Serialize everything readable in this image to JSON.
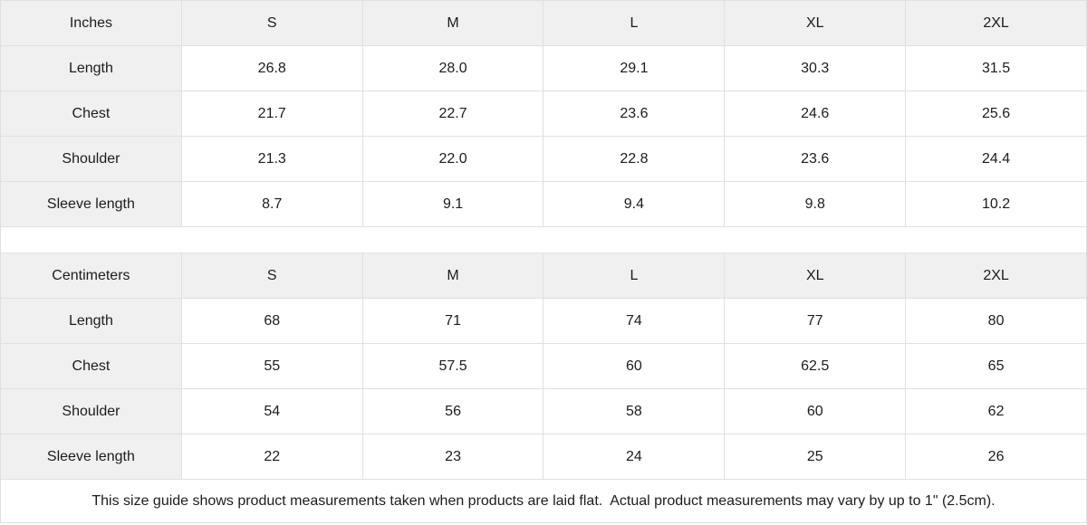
{
  "tables": [
    {
      "name": "inches",
      "unit_label": "Inches",
      "columns": [
        "S",
        "M",
        "L",
        "XL",
        "2XL"
      ],
      "rows": [
        {
          "label": "Length",
          "values": [
            "26.8",
            "28.0",
            "29.1",
            "30.3",
            "31.5"
          ]
        },
        {
          "label": "Chest",
          "values": [
            "21.7",
            "22.7",
            "23.6",
            "24.6",
            "25.6"
          ]
        },
        {
          "label": "Shoulder",
          "values": [
            "21.3",
            "22.0",
            "22.8",
            "23.6",
            "24.4"
          ]
        },
        {
          "label": "Sleeve length",
          "values": [
            "8.7",
            "9.1",
            "9.4",
            "9.8",
            "10.2"
          ]
        }
      ]
    },
    {
      "name": "centimeters",
      "unit_label": "Centimeters",
      "columns": [
        "S",
        "M",
        "L",
        "XL",
        "2XL"
      ],
      "rows": [
        {
          "label": "Length",
          "values": [
            "68",
            "71",
            "74",
            "77",
            "80"
          ]
        },
        {
          "label": "Chest",
          "values": [
            "55",
            "57.5",
            "60",
            "62.5",
            "65"
          ]
        },
        {
          "label": "Shoulder",
          "values": [
            "54",
            "56",
            "58",
            "60",
            "62"
          ]
        },
        {
          "label": "Sleeve length",
          "values": [
            "22",
            "23",
            "24",
            "25",
            "26"
          ]
        }
      ]
    }
  ],
  "footer": {
    "note": "This size guide shows product measurements taken when products are laid flat.  Actual product measurements may vary by up to 1\" (2.5cm)."
  },
  "colors": {
    "header_bg": "#f0f0f0",
    "cell_bg": "#ffffff",
    "border": "#e0e0e0",
    "text": "#1c1c1c"
  }
}
